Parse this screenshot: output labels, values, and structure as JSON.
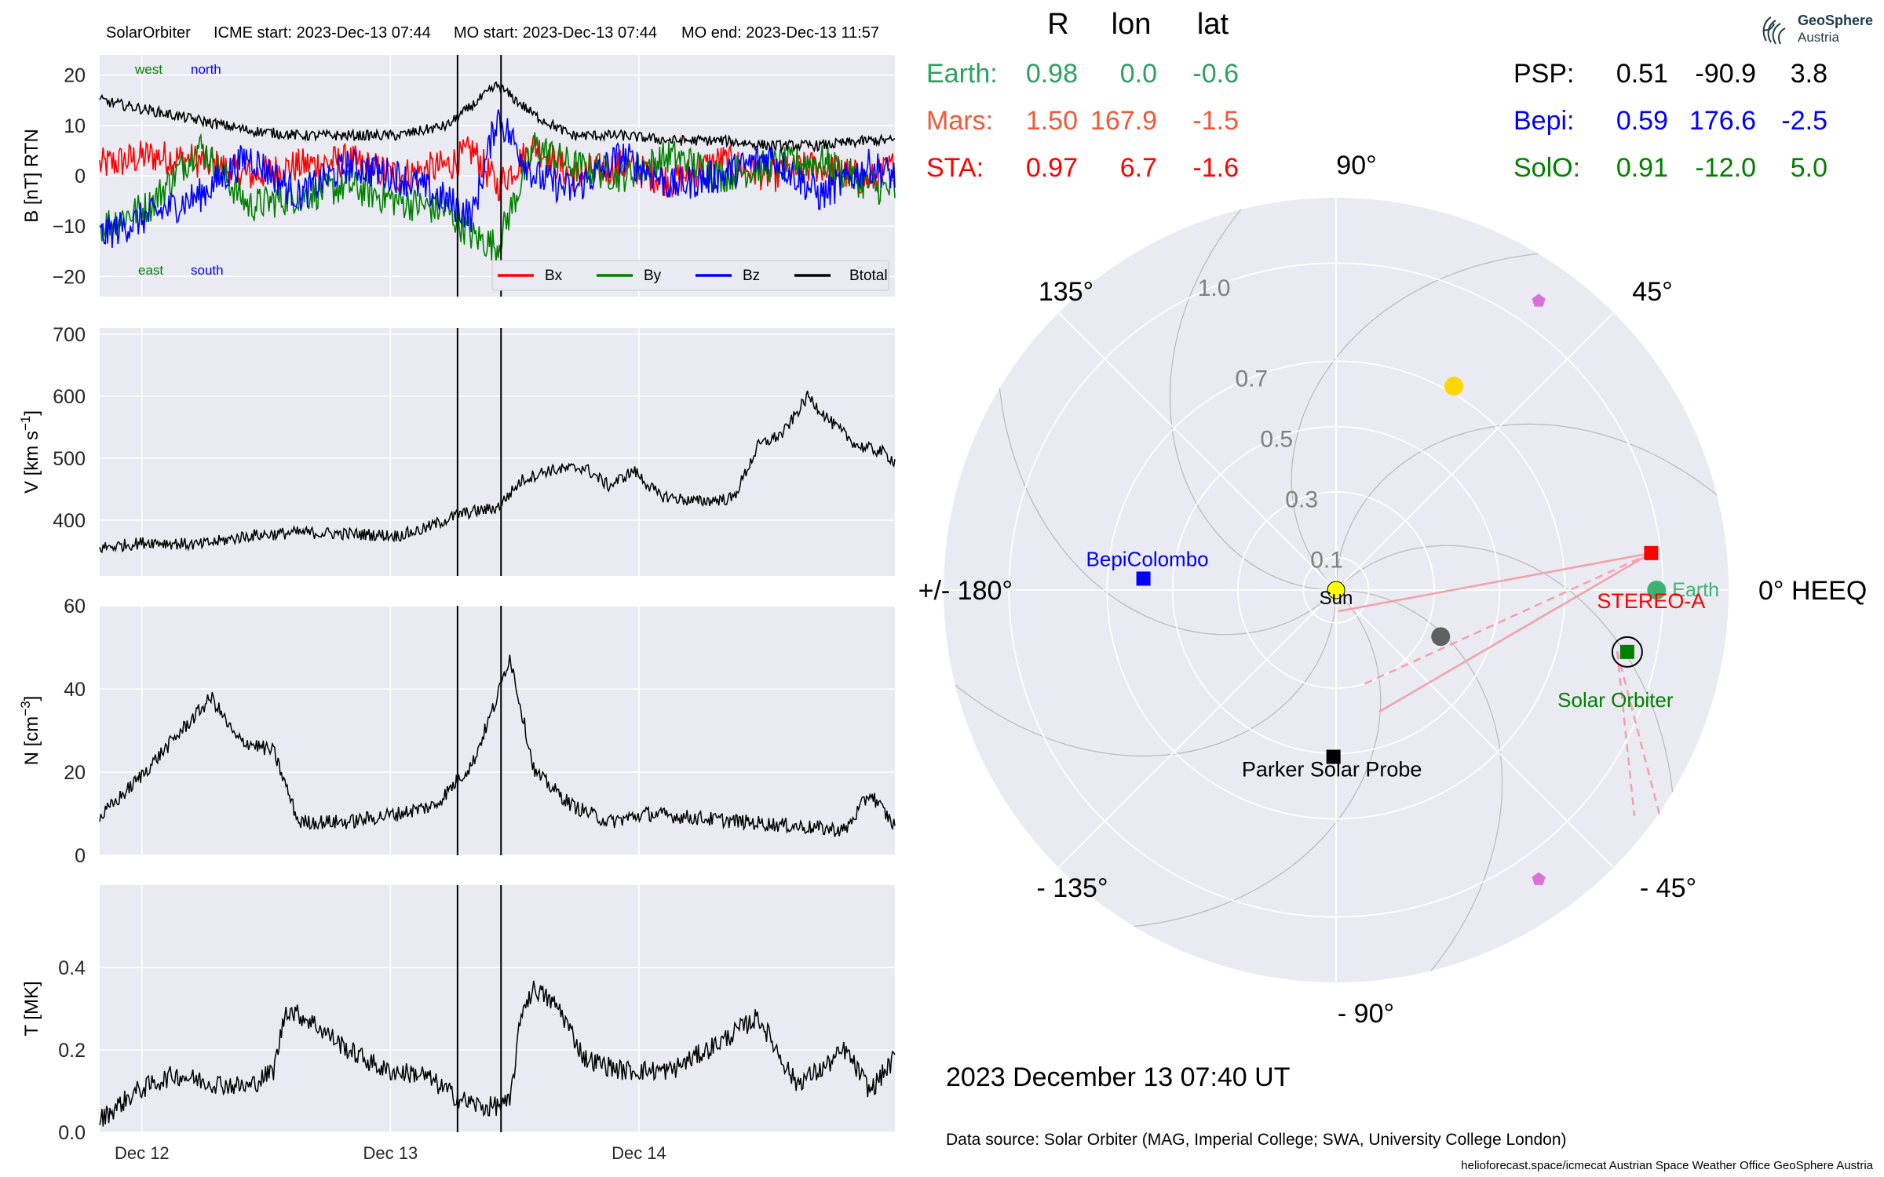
{
  "header": {
    "spacecraft": "SolarOrbiter",
    "icme_start": "ICME start: 2023-Dec-13 07:44",
    "mo_start": "MO start: 2023-Dec-13 07:44",
    "mo_end": "MO end: 2023-Dec-13 11:57"
  },
  "logo": {
    "title": "GeoSphere",
    "subtitle": "Austria"
  },
  "position_table": {
    "columns": [
      "R",
      "lon",
      "lat"
    ],
    "left": [
      {
        "name": "Earth:",
        "R": "0.98",
        "lon": "0.0",
        "lat": "-0.6",
        "color": "#2ca25f"
      },
      {
        "name": "Mars:",
        "R": "1.50",
        "lon": "167.9",
        "lat": "-1.5",
        "color": "#f4583a"
      },
      {
        "name": "STA:",
        "R": "0.97",
        "lon": "6.7",
        "lat": "-1.6",
        "color": "#ff0000"
      }
    ],
    "right": [
      {
        "name": "PSP:",
        "R": "0.51",
        "lon": "-90.9",
        "lat": "3.8",
        "color": "#000000"
      },
      {
        "name": "Bepi:",
        "R": "0.59",
        "lon": "176.6",
        "lat": "-2.5",
        "color": "#0000ff"
      },
      {
        "name": "SolO:",
        "R": "0.91",
        "lon": "-12.0",
        "lat": "5.0",
        "color": "#008000"
      }
    ]
  },
  "polar": {
    "angle_labels": {
      "a0": "0° HEEQ",
      "a45": "45°",
      "a90": "90°",
      "a135": "135°",
      "a180": "+/- 180°",
      "am135": "- 135°",
      "am90": "- 90°",
      "am45": "- 45°"
    },
    "radial_labels": [
      "0.1",
      "0.3",
      "0.5",
      "0.7",
      "1.0"
    ],
    "radial_values": [
      0.1,
      0.3,
      0.5,
      0.7,
      1.0
    ],
    "rmax": 1.2,
    "bodies": [
      {
        "label": "Sun",
        "r": 0.0,
        "lon": 0,
        "color": "#ffff00",
        "marker": "circle"
      },
      {
        "label": "Earth",
        "r": 0.98,
        "lon": 0.0,
        "color": "#3cb371",
        "marker": "circle"
      },
      {
        "label": "STEREO-A",
        "r": 0.97,
        "lon": 6.7,
        "color": "#ff0000",
        "marker": "square"
      },
      {
        "label": "Solar Orbiter",
        "r": 0.91,
        "lon": -12.0,
        "color": "#008000",
        "marker": "square"
      },
      {
        "label": "BepiColombo",
        "r": 0.59,
        "lon": 176.6,
        "color": "#0000ff",
        "marker": "square"
      },
      {
        "label": "Parker Solar Probe",
        "r": 0.51,
        "lon": -90.9,
        "color": "#000000",
        "marker": "square"
      },
      {
        "label": "",
        "r": 0.72,
        "lon": 60,
        "color": "#ffd700",
        "marker": "circle"
      },
      {
        "label": "",
        "r": 0.35,
        "lon": -24,
        "color": "#606060",
        "marker": "circle"
      },
      {
        "label": "",
        "r": 1.08,
        "lon": 55,
        "color": "#da70d6",
        "marker": "pentagon"
      },
      {
        "label": "",
        "r": 1.08,
        "lon": -55,
        "color": "#da70d6",
        "marker": "pentagon"
      }
    ],
    "date": "2023 December 13  07:40 UT",
    "source": "Data source: Solar Orbiter (MAG, Imperial College; SWA, University College London)",
    "footer": "helioforecast.space/icmecat   Austrian Space Weather Office   GeoSphere Austria"
  },
  "chart_data": [
    {
      "type": "line",
      "ylabel": "B [nT] RTN",
      "ylim": [
        -24,
        24
      ],
      "yticks": [
        -20,
        -10,
        0,
        10,
        20
      ],
      "annotations": {
        "west": "west",
        "north": "north",
        "east": "east",
        "south": "south"
      },
      "legend": {
        "position": "bottom-right",
        "entries": [
          "Bx",
          "By",
          "Bz",
          "Btotal"
        ]
      },
      "series": [
        {
          "name": "Bx",
          "color": "#ff0000",
          "x": [
            0,
            0.2,
            0.4,
            0.6,
            0.8,
            1.0,
            1.2,
            1.4,
            1.5,
            1.6,
            1.75,
            1.9,
            2.1,
            2.3,
            2.5,
            2.7,
            2.9,
            3.1,
            3.2
          ],
          "y": [
            2,
            4,
            3,
            0,
            2,
            3,
            0,
            2,
            5,
            -2,
            6,
            0,
            2,
            -1,
            3,
            0,
            2,
            -1,
            2
          ]
        },
        {
          "name": "By",
          "color": "#008000",
          "x": [
            0,
            0.2,
            0.4,
            0.6,
            0.8,
            1.0,
            1.2,
            1.4,
            1.5,
            1.6,
            1.75,
            1.9,
            2.1,
            2.3,
            2.5,
            2.7,
            2.9,
            3.1,
            3.2
          ],
          "y": [
            -10,
            -6,
            6,
            -6,
            -4,
            -2,
            -5,
            -7,
            -12,
            -14,
            6,
            2,
            0,
            4,
            0,
            2,
            3,
            -2,
            -3
          ]
        },
        {
          "name": "Bz",
          "color": "#0000ff",
          "x": [
            0,
            0.2,
            0.4,
            0.6,
            0.8,
            1.0,
            1.2,
            1.4,
            1.5,
            1.6,
            1.75,
            1.9,
            2.1,
            2.3,
            2.5,
            2.7,
            2.9,
            3.1,
            3.2
          ],
          "y": [
            -12,
            -8,
            -4,
            4,
            -4,
            2,
            0,
            -5,
            -8,
            12,
            0,
            -3,
            4,
            -2,
            0,
            4,
            -4,
            2,
            0
          ]
        },
        {
          "name": "Btotal",
          "color": "#000000",
          "x": [
            0,
            0.2,
            0.4,
            0.6,
            0.8,
            1.0,
            1.2,
            1.4,
            1.5,
            1.6,
            1.75,
            1.9,
            2.1,
            2.3,
            2.5,
            2.7,
            2.9,
            3.1,
            3.2
          ],
          "y": [
            15,
            13,
            11,
            9,
            8,
            8,
            8,
            10,
            14,
            18,
            12,
            8,
            8,
            7,
            7,
            6,
            6,
            7,
            7
          ]
        }
      ]
    },
    {
      "type": "line",
      "ylabel": "V [km s^-1]",
      "ylim": [
        310,
        710
      ],
      "yticks": [
        400,
        500,
        600,
        700
      ],
      "series": [
        {
          "name": "",
          "color": "#000000",
          "x": [
            0,
            0.2,
            0.4,
            0.6,
            0.8,
            1.0,
            1.2,
            1.3,
            1.45,
            1.6,
            1.7,
            1.8,
            1.95,
            2.05,
            2.15,
            2.25,
            2.4,
            2.55,
            2.65,
            2.75,
            2.85,
            2.95,
            3.05,
            3.15,
            3.2
          ],
          "y": [
            355,
            365,
            360,
            375,
            380,
            378,
            375,
            385,
            410,
            420,
            465,
            480,
            485,
            455,
            480,
            440,
            430,
            435,
            520,
            540,
            600,
            555,
            520,
            510,
            495
          ]
        }
      ]
    },
    {
      "type": "line",
      "ylabel": "N [cm^-3]",
      "ylim": [
        0,
        60
      ],
      "yticks": [
        0,
        20,
        40,
        60
      ],
      "series": [
        {
          "name": "",
          "color": "#000000",
          "x": [
            0,
            0.15,
            0.3,
            0.45,
            0.55,
            0.7,
            0.8,
            1.0,
            1.2,
            1.35,
            1.5,
            1.6,
            1.65,
            1.75,
            1.9,
            2.05,
            2.2,
            2.4,
            2.6,
            2.8,
            3.0,
            3.1,
            3.2
          ],
          "y": [
            9,
            18,
            28,
            38,
            28,
            25,
            8,
            8,
            10,
            12,
            22,
            38,
            48,
            20,
            12,
            8,
            10,
            9,
            8,
            7,
            6,
            15,
            7
          ]
        }
      ]
    },
    {
      "type": "line",
      "ylabel": "T [MK]",
      "ylim": [
        0,
        0.6
      ],
      "yticks": [
        0.0,
        0.2,
        0.4
      ],
      "xticks": [
        {
          "x": 0.17,
          "label": "Dec 12"
        },
        {
          "x": 1.17,
          "label": "Dec 13"
        },
        {
          "x": 2.17,
          "label": "Dec 14"
        }
      ],
      "series": [
        {
          "name": "",
          "color": "#000000",
          "x": [
            0,
            0.15,
            0.3,
            0.45,
            0.6,
            0.7,
            0.75,
            0.85,
            1.0,
            1.15,
            1.3,
            1.45,
            1.55,
            1.65,
            1.7,
            1.75,
            1.85,
            1.95,
            2.1,
            2.3,
            2.5,
            2.65,
            2.8,
            2.9,
            3.0,
            3.1,
            3.2
          ],
          "y": [
            0.03,
            0.1,
            0.14,
            0.12,
            0.11,
            0.15,
            0.3,
            0.27,
            0.2,
            0.15,
            0.14,
            0.08,
            0.06,
            0.07,
            0.3,
            0.35,
            0.3,
            0.18,
            0.15,
            0.15,
            0.22,
            0.28,
            0.12,
            0.15,
            0.2,
            0.1,
            0.18
          ]
        }
      ]
    }
  ]
}
